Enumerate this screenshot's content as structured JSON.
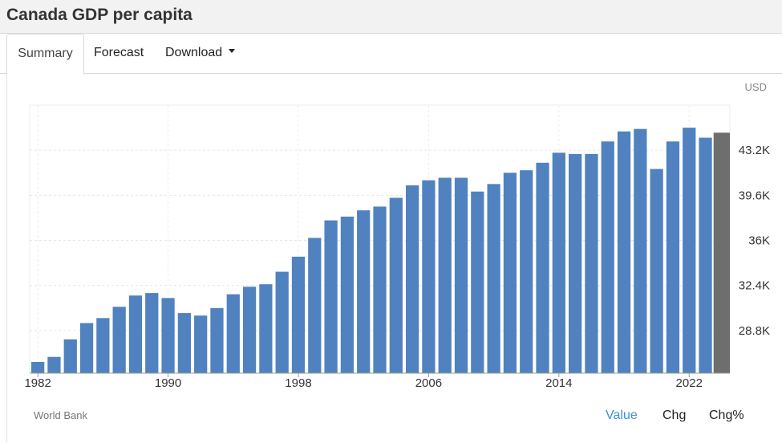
{
  "page": {
    "title": "Canada GDP per capita"
  },
  "tabs": {
    "summary": "Summary",
    "forecast": "Forecast",
    "download": "Download"
  },
  "footer": {
    "source": "World Bank",
    "value": "Value",
    "chg": "Chg",
    "chg_pct": "Chg%"
  },
  "colors": {
    "bar": "#5082c0",
    "bar_last": "#6e6e6e",
    "active_option": "#3a8ee6"
  },
  "chart_data": {
    "type": "bar",
    "unit_label": "USD",
    "x": [
      1982,
      1983,
      1984,
      1985,
      1986,
      1987,
      1988,
      1989,
      1990,
      1991,
      1992,
      1993,
      1994,
      1995,
      1996,
      1997,
      1998,
      1999,
      2000,
      2001,
      2002,
      2003,
      2004,
      2005,
      2006,
      2007,
      2008,
      2009,
      2010,
      2011,
      2012,
      2013,
      2014,
      2015,
      2016,
      2017,
      2018,
      2019,
      2020,
      2021,
      2022,
      2023,
      2024
    ],
    "values": [
      26300,
      26700,
      28100,
      29400,
      29800,
      30700,
      31600,
      31800,
      31400,
      30200,
      30000,
      30600,
      31700,
      32300,
      32500,
      33500,
      34700,
      36200,
      37600,
      37900,
      38400,
      38700,
      39400,
      40400,
      40800,
      41000,
      41000,
      39900,
      40500,
      41400,
      41600,
      42200,
      43000,
      42900,
      42900,
      43900,
      44700,
      44900,
      41700,
      43900,
      45000,
      44200,
      44600
    ],
    "highlight_last": true,
    "x_ticks": [
      1982,
      1990,
      1998,
      2006,
      2014,
      2022
    ],
    "y_ticks": [
      28800,
      32400,
      36000,
      39600,
      43200
    ],
    "y_tick_labels": [
      "28.8K",
      "32.4K",
      "36K",
      "39.6K",
      "43.2K"
    ],
    "ylim": [
      25400,
      46800
    ],
    "grid": true
  }
}
